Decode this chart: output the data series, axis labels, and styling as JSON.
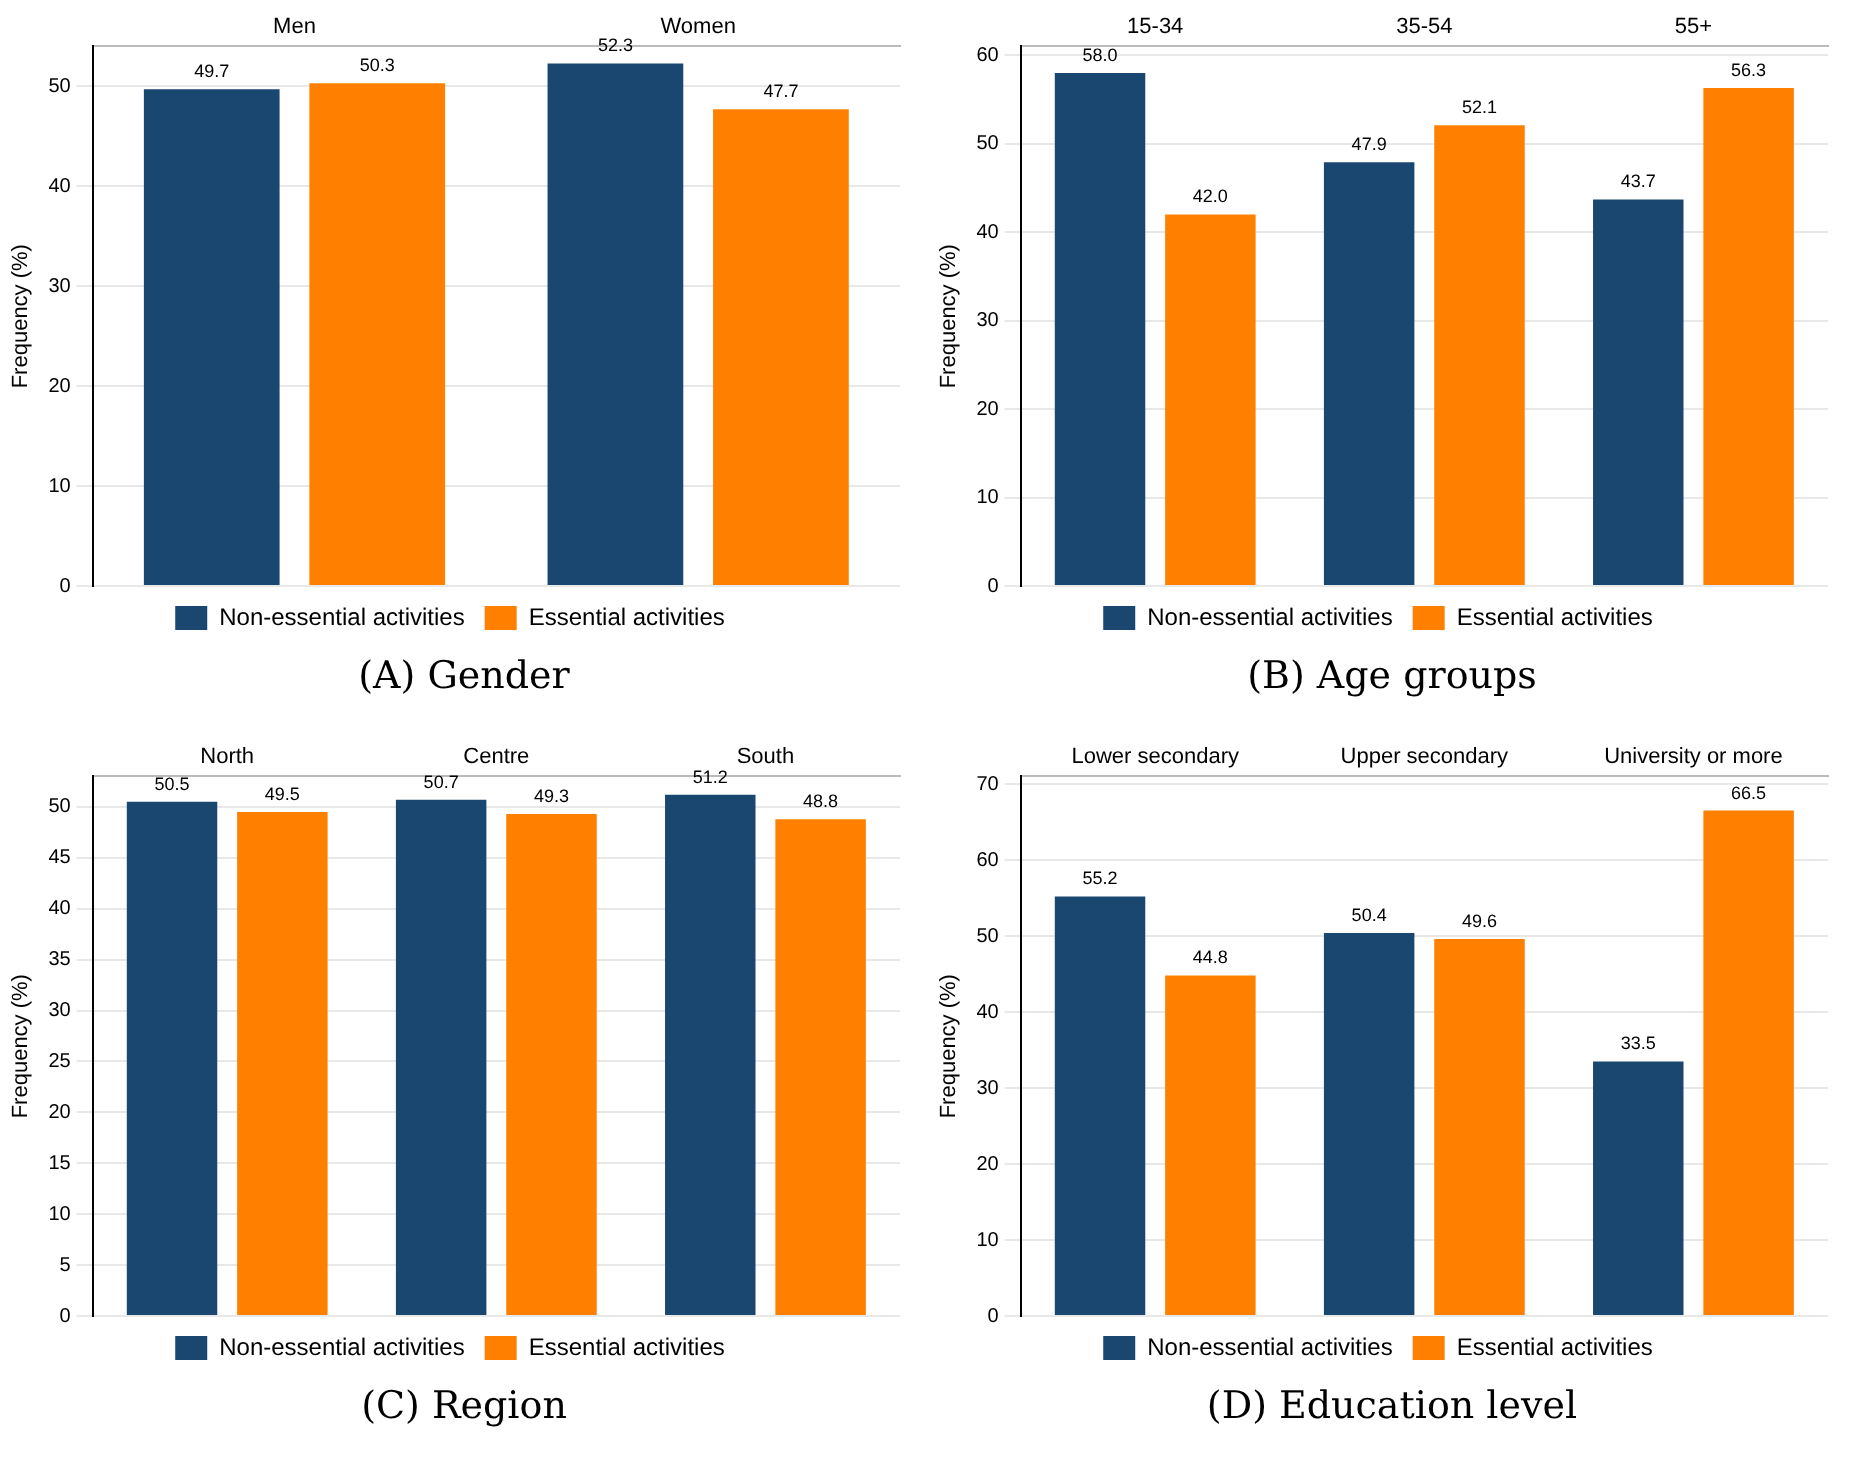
{
  "chart_data": [
    {
      "type": "bar",
      "title": "(A) Gender",
      "ylabel": "Frequency (%)",
      "categories": [
        "Men",
        "Women"
      ],
      "series": [
        {
          "name": "Non-essential activities",
          "color": "#1a476f",
          "values": [
            49.7,
            52.3
          ],
          "value_labels": [
            "49.7",
            "52.3"
          ]
        },
        {
          "name": "Essential activities",
          "color": "#ff8000",
          "values": [
            50.3,
            47.7
          ],
          "value_labels": [
            "50.3",
            "47.7"
          ]
        }
      ],
      "ylim": [
        0,
        54
      ],
      "yticks": [
        0,
        10,
        20,
        30,
        40,
        50
      ],
      "grid": "y",
      "legend": "bottom"
    },
    {
      "type": "bar",
      "title": "(B) Age groups",
      "ylabel": "Frequency (%)",
      "categories": [
        "15-34",
        "35-54",
        "55+"
      ],
      "series": [
        {
          "name": "Non-essential activities",
          "color": "#1a476f",
          "values": [
            58.0,
            47.9,
            43.7
          ],
          "value_labels": [
            "58.0",
            "47.9",
            "43.7"
          ]
        },
        {
          "name": "Essential activities",
          "color": "#ff8000",
          "values": [
            42.0,
            52.1,
            56.3
          ],
          "value_labels": [
            "42.0",
            "52.1",
            "56.3"
          ]
        }
      ],
      "ylim": [
        0,
        61
      ],
      "yticks": [
        0,
        10,
        20,
        30,
        40,
        50,
        60
      ],
      "grid": "y",
      "legend": "bottom"
    },
    {
      "type": "bar",
      "title": "(C) Region",
      "ylabel": "Frequency (%)",
      "categories": [
        "North",
        "Centre",
        "South"
      ],
      "series": [
        {
          "name": "Non-essential activities",
          "color": "#1a476f",
          "values": [
            50.5,
            50.7,
            51.2
          ],
          "value_labels": [
            "50.5",
            "50.7",
            "51.2"
          ]
        },
        {
          "name": "Essential activities",
          "color": "#ff8000",
          "values": [
            49.5,
            49.3,
            48.8
          ],
          "value_labels": [
            "49.5",
            "49.3",
            "48.8"
          ]
        }
      ],
      "ylim": [
        0,
        53
      ],
      "yticks": [
        0,
        5,
        10,
        15,
        20,
        25,
        30,
        35,
        40,
        45,
        50
      ],
      "grid": "y",
      "legend": "bottom"
    },
    {
      "type": "bar",
      "title": "(D) Education level",
      "ylabel": "Frequency (%)",
      "categories": [
        "Lower secondary",
        "Upper secondary",
        "University or more"
      ],
      "series": [
        {
          "name": "Non-essential activities",
          "color": "#1a476f",
          "values": [
            55.2,
            50.4,
            33.5
          ],
          "value_labels": [
            "55.2",
            "50.4",
            "33.5"
          ]
        },
        {
          "name": "Essential activities",
          "color": "#ff8000",
          "values": [
            44.8,
            49.6,
            66.5
          ],
          "value_labels": [
            "44.8",
            "49.6",
            "66.5"
          ]
        }
      ],
      "ylim": [
        0,
        71
      ],
      "yticks": [
        0,
        10,
        20,
        30,
        40,
        50,
        60,
        70
      ],
      "grid": "y",
      "legend": "bottom"
    }
  ]
}
